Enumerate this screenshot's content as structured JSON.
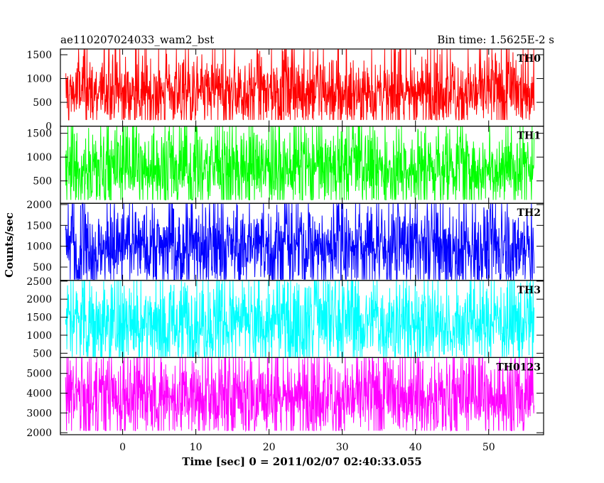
{
  "chart_data": {
    "type": "line",
    "title": "ae110207024033_wam2_bst",
    "subtitle": "Bin time: 1.5625E-2 s",
    "xlabel": "Time [sec] 0 = 2011/02/07 02:40:33.055",
    "ylabel": "Counts/sec",
    "xlim": [
      -8.5,
      57.5
    ],
    "x_ticks": [
      0,
      10,
      20,
      30,
      40,
      50
    ],
    "x_range_data": [
      -7.8,
      56.2
    ],
    "grid": false,
    "panels": [
      {
        "name": "TH0",
        "color": "#ff0000",
        "ylim": [
          0,
          1620
        ],
        "y_ticks": [
          0,
          500,
          1000,
          1500
        ],
        "mean": 720,
        "min": 130,
        "max": 1620,
        "spread": 380
      },
      {
        "name": "TH1",
        "color": "#00ff00",
        "ylim": [
          30,
          1650
        ],
        "y_ticks": [
          500,
          1000,
          1500
        ],
        "mean": 780,
        "min": 100,
        "max": 1650,
        "spread": 420
      },
      {
        "name": "TH2",
        "color": "#0000ff",
        "ylim": [
          180,
          2030
        ],
        "y_ticks": [
          500,
          1000,
          1500,
          2000
        ],
        "mean": 1000,
        "min": 200,
        "max": 2030,
        "spread": 500
      },
      {
        "name": "TH3",
        "color": "#00ffff",
        "ylim": [
          380,
          2520
        ],
        "y_ticks": [
          500,
          1000,
          1500,
          2000,
          2500
        ],
        "mean": 1370,
        "min": 400,
        "max": 2520,
        "spread": 620
      },
      {
        "name": "TH0123",
        "color": "#ff00ff",
        "ylim": [
          1900,
          5800
        ],
        "y_ticks": [
          2000,
          3000,
          4000,
          5000
        ],
        "mean": 3820,
        "min": 2100,
        "max": 5800,
        "spread": 1050
      }
    ]
  }
}
